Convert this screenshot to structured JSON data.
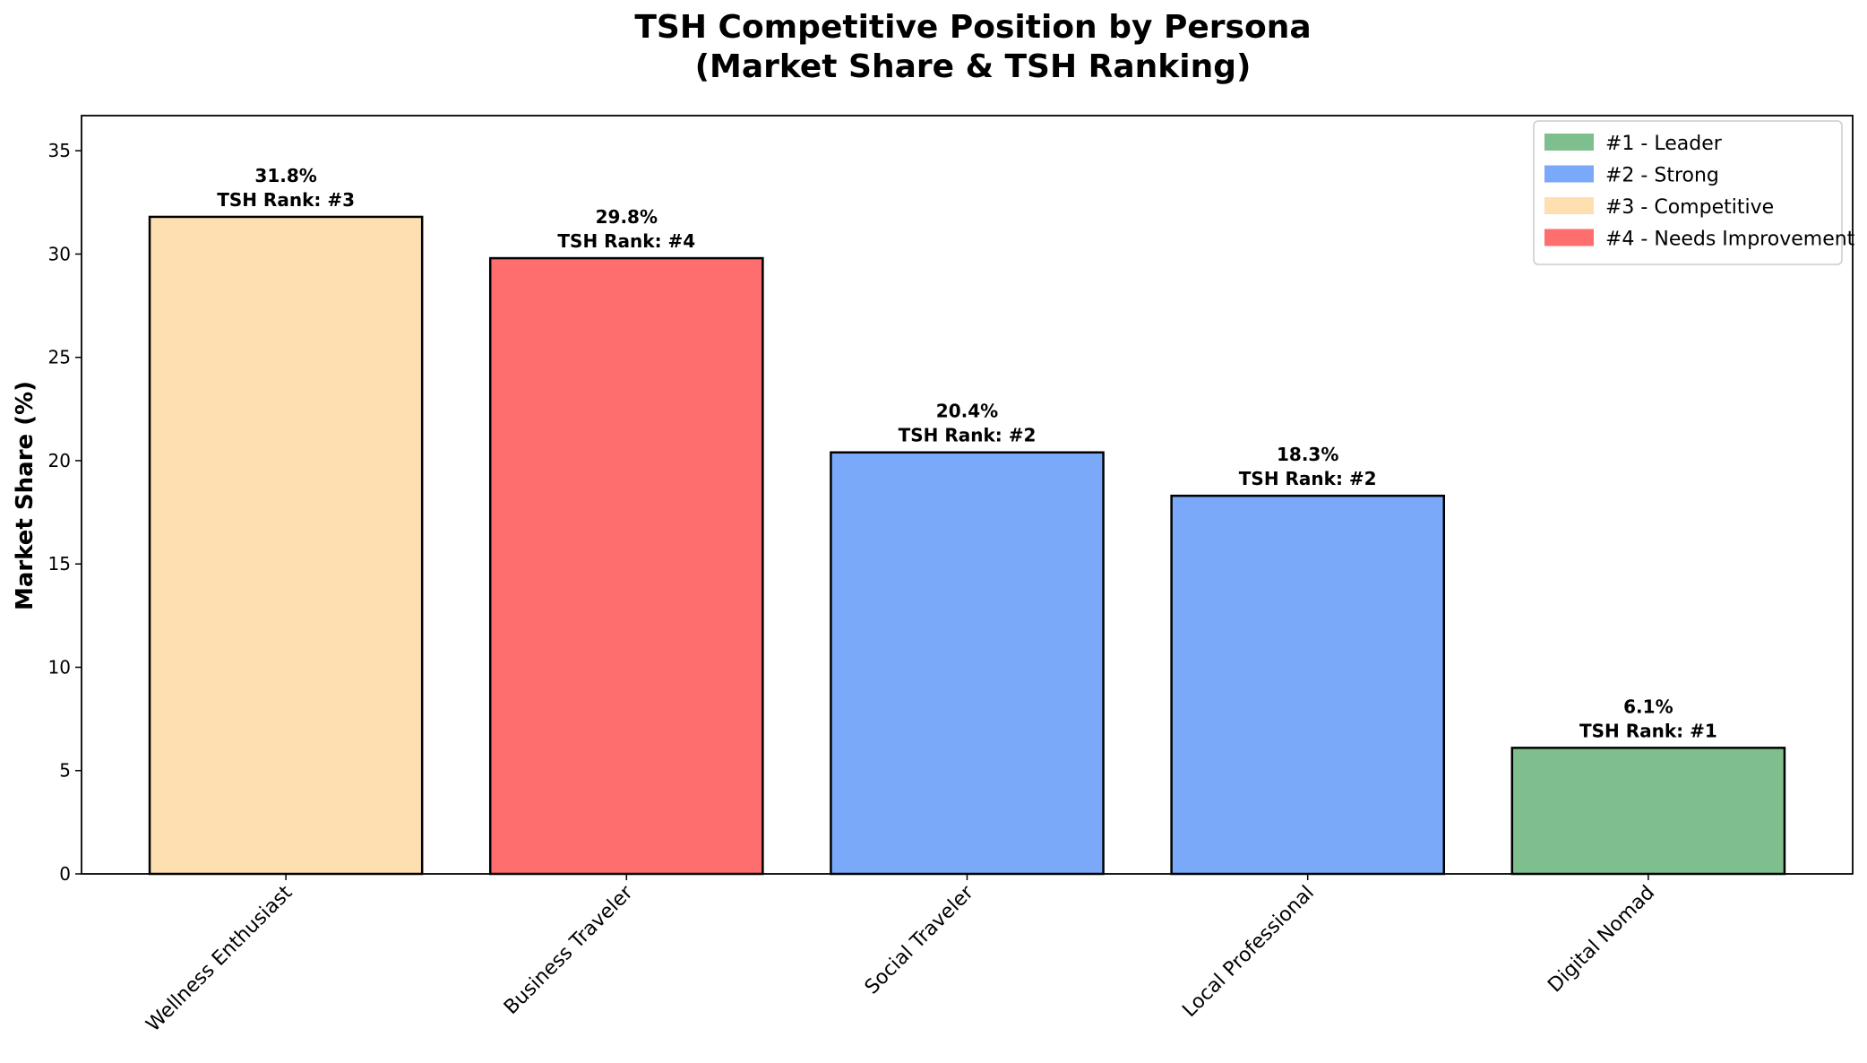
{
  "chart_data": {
    "type": "bar",
    "title": "TSH Competitive Position by Persona",
    "subtitle": "(Market Share & TSH Ranking)",
    "xlabel": "",
    "ylabel": "Market Share (%)",
    "ylim": [
      0,
      36.7
    ],
    "yticks": [
      "0",
      "5",
      "10",
      "15",
      "20",
      "25",
      "30",
      "35"
    ],
    "categories": [
      "Wellness Enthusiast",
      "Business Traveler",
      "Social Traveler",
      "Local Professional",
      "Digital Nomad"
    ],
    "values": [
      31.8,
      29.8,
      20.4,
      18.3,
      6.1
    ],
    "ranks": [
      3,
      4,
      2,
      2,
      1
    ],
    "value_labels": [
      "31.8%",
      "29.8%",
      "20.4%",
      "18.3%",
      "6.1%"
    ],
    "rank_labels": [
      "TSH Rank: #3",
      "TSH Rank: #4",
      "TSH Rank: #2",
      "TSH Rank: #2",
      "TSH Rank: #1"
    ],
    "grid": false,
    "legend_position": "top-right",
    "legend": [
      {
        "label": "#1 - Leader",
        "color": "#7fbf8e"
      },
      {
        "label": "#2 - Strong",
        "color": "#7aa9fa"
      },
      {
        "label": "#3 - Competitive",
        "color": "#fddfb2"
      },
      {
        "label": "#4 - Needs Improvement",
        "color": "#ff6e6e"
      }
    ],
    "rank_colors": {
      "1": "#7fbf8e",
      "2": "#7aa9fa",
      "3": "#fddfb2",
      "4": "#ff6e6e"
    }
  }
}
